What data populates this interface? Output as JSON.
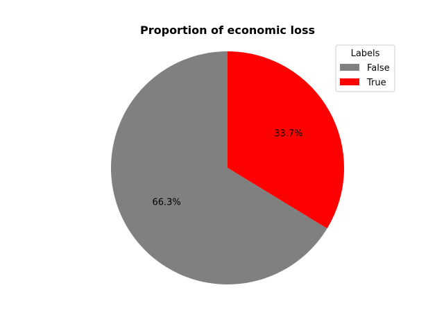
{
  "chart_data": {
    "type": "pie",
    "title": "Proportion of economic loss",
    "categories": [
      "False",
      "True"
    ],
    "values": [
      66.3,
      33.7
    ],
    "value_labels": [
      "66.3%",
      "33.7%"
    ],
    "colors": [
      "#808080",
      "#ff0000"
    ],
    "start_angle_deg": 90,
    "direction": "clockwise",
    "legend": {
      "title": "Labels",
      "placement": "top-right",
      "entries": [
        "False",
        "True"
      ]
    }
  }
}
